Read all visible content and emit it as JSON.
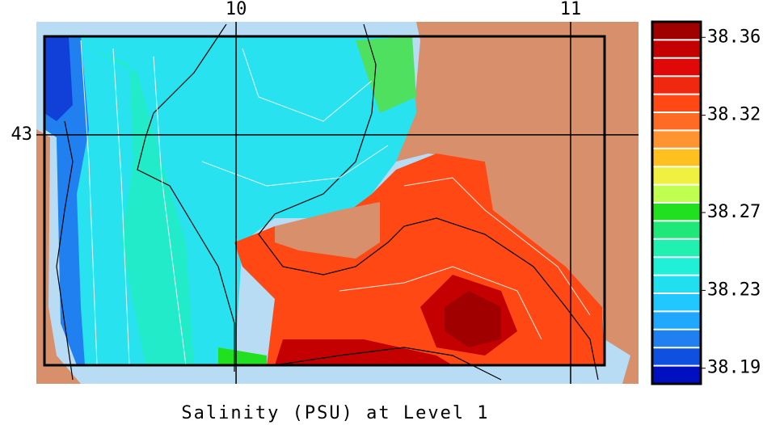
{
  "map": {
    "title": "Salinity (PSU) at Level 1",
    "lon_ticks": [
      10,
      11
    ],
    "lat_ticks": [
      43
    ],
    "lonlim": [
      9.403,
      11.203
    ],
    "latlim": [
      42.456,
      43.247
    ],
    "colorbar": {
      "clim": [
        38.182,
        38.368
      ],
      "ticks": [
        38.36,
        38.32,
        38.27,
        38.23,
        38.19
      ],
      "colors": [
        "#a00000",
        "#c40000",
        "#e00808",
        "#f02810",
        "#ff4814",
        "#ff6a24",
        "#ff9430",
        "#ffc020",
        "#f0f040",
        "#c0ff50",
        "#20e020",
        "#20e878",
        "#20f0b0",
        "#20f0d8",
        "#20e0f0",
        "#20c8ff",
        "#20a8ff",
        "#2080f0",
        "#1050e0",
        "#0010c0"
      ]
    }
  }
}
